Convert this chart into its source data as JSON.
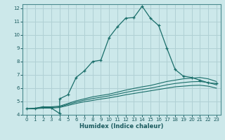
{
  "title": "",
  "xlabel": "Humidex (Indice chaleur)",
  "bg_color": "#cce8ea",
  "grid_color": "#b0d0d4",
  "line_color": "#1a6e6a",
  "xlim": [
    -0.5,
    23.5
  ],
  "ylim": [
    4,
    12.3
  ],
  "x_ticks": [
    0,
    1,
    2,
    3,
    4,
    5,
    6,
    7,
    8,
    9,
    10,
    11,
    12,
    13,
    14,
    15,
    16,
    17,
    18,
    19,
    20,
    21,
    22,
    23
  ],
  "y_ticks": [
    4,
    5,
    6,
    7,
    8,
    9,
    10,
    11,
    12
  ],
  "series1_x": [
    0,
    1,
    2,
    3,
    4,
    4,
    5,
    6,
    7,
    8,
    9,
    10,
    11,
    12,
    13,
    14,
    15,
    16,
    17,
    18,
    19,
    20,
    21,
    22,
    23
  ],
  "series1_y": [
    4.45,
    4.45,
    4.6,
    4.5,
    4.1,
    5.2,
    5.5,
    6.8,
    7.3,
    8.0,
    8.1,
    9.8,
    10.6,
    11.25,
    11.3,
    12.15,
    11.25,
    10.7,
    9.0,
    7.4,
    6.9,
    6.8,
    6.6,
    6.4,
    6.35
  ],
  "series2_x": [
    0,
    1,
    2,
    3,
    4,
    5,
    6,
    7,
    8,
    9,
    10,
    11,
    12,
    13,
    14,
    15,
    16,
    17,
    18,
    19,
    20,
    21,
    22,
    23
  ],
  "series2_y": [
    4.45,
    4.5,
    4.6,
    4.6,
    4.65,
    4.85,
    5.05,
    5.2,
    5.35,
    5.45,
    5.55,
    5.7,
    5.85,
    5.98,
    6.1,
    6.2,
    6.35,
    6.5,
    6.6,
    6.7,
    6.75,
    6.8,
    6.7,
    6.5
  ],
  "series3_x": [
    0,
    1,
    2,
    3,
    4,
    5,
    6,
    7,
    8,
    9,
    10,
    11,
    12,
    13,
    14,
    15,
    16,
    17,
    18,
    19,
    20,
    21,
    22,
    23
  ],
  "series3_y": [
    4.45,
    4.48,
    4.55,
    4.55,
    4.6,
    4.78,
    4.95,
    5.1,
    5.22,
    5.32,
    5.42,
    5.55,
    5.68,
    5.8,
    5.9,
    6.0,
    6.12,
    6.25,
    6.35,
    6.42,
    6.48,
    6.5,
    6.42,
    6.25
  ],
  "series4_x": [
    0,
    1,
    2,
    3,
    4,
    5,
    6,
    7,
    8,
    9,
    10,
    11,
    12,
    13,
    14,
    15,
    16,
    17,
    18,
    19,
    20,
    21,
    22,
    23
  ],
  "series4_y": [
    4.45,
    4.46,
    4.5,
    4.5,
    4.55,
    4.7,
    4.85,
    4.98,
    5.08,
    5.18,
    5.27,
    5.38,
    5.5,
    5.6,
    5.7,
    5.8,
    5.9,
    6.0,
    6.1,
    6.15,
    6.2,
    6.22,
    6.15,
    6.0
  ]
}
